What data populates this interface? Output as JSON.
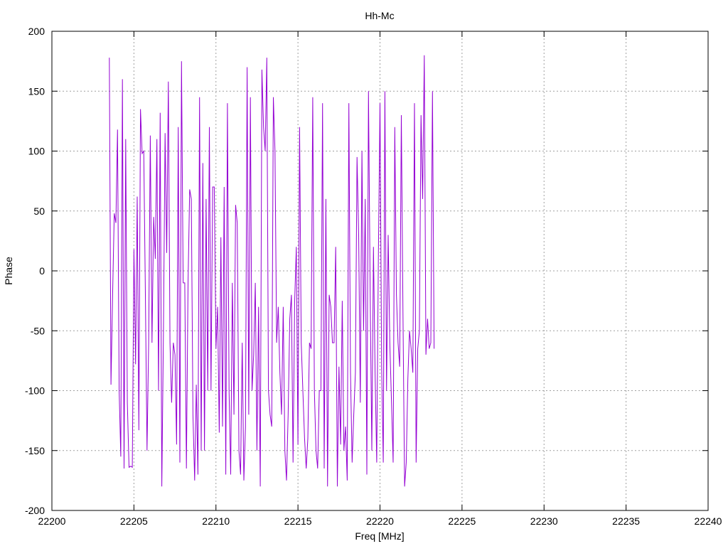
{
  "chart_data": {
    "type": "line",
    "title": "Hh-Mc",
    "xlabel": "Freq [MHz]",
    "ylabel": "Phase",
    "xlim": [
      22200,
      22240
    ],
    "ylim": [
      -200,
      200
    ],
    "x_ticks": [
      "22200",
      "22205",
      "22210",
      "22215",
      "22220",
      "22225",
      "22230",
      "22235",
      "22240"
    ],
    "y_ticks": [
      "200",
      "150",
      "100",
      "50",
      "0",
      "-50",
      "-100",
      "-150",
      "-200"
    ],
    "grid": true,
    "line_color": "#9400d3",
    "series": [
      {
        "x_start": 22203.5,
        "x_step": 0.1,
        "values": [
          178,
          -95,
          -20,
          48,
          40,
          118,
          -100,
          -155,
          160,
          -165,
          110,
          -110,
          -164,
          -163,
          -164,
          18,
          -78,
          62,
          -133,
          135,
          98,
          100,
          -20,
          -150,
          -60,
          113,
          -60,
          45,
          10,
          110,
          -100,
          132,
          -180,
          -50,
          115,
          15,
          158,
          -60,
          -110,
          -60,
          -70,
          -145,
          120,
          -160,
          175,
          -10,
          -10,
          -165,
          -10,
          68,
          60,
          -120,
          -175,
          -95,
          -170,
          145,
          -150,
          90,
          -150,
          60,
          -100,
          120,
          -100,
          70,
          70,
          -65,
          -30,
          -135,
          28,
          -130,
          70,
          -170,
          140,
          -100,
          -170,
          -10,
          -120,
          55,
          40,
          -150,
          -170,
          -60,
          -175,
          -130,
          170,
          -120,
          145,
          -100,
          -70,
          -10,
          -150,
          -30,
          -180,
          168,
          120,
          100,
          178,
          -100,
          -120,
          -130,
          145,
          100,
          -60,
          -30,
          -85,
          -120,
          -30,
          -150,
          -175,
          -120,
          -40,
          -20,
          -160,
          -25,
          20,
          -145,
          120,
          -60,
          -100,
          -140,
          -165,
          -140,
          -60,
          -65,
          145,
          -100,
          -150,
          -165,
          -100,
          -100,
          140,
          -165,
          60,
          -180,
          -20,
          -30,
          -60,
          -60,
          20,
          -180,
          -80,
          -145,
          -25,
          -150,
          -130,
          -175,
          140,
          -85,
          -160,
          -120,
          -85,
          95,
          30,
          -110,
          100,
          -50,
          60,
          -170,
          150,
          -20,
          -150,
          20,
          -85,
          -160,
          10,
          140,
          -80,
          -160,
          150,
          -100,
          30,
          -60,
          -110,
          -160,
          120,
          -20,
          -60,
          -80,
          130,
          -35,
          -180,
          -160,
          -90,
          -50,
          -65,
          -85,
          140,
          -160,
          -65,
          -50,
          130,
          60,
          180,
          -70,
          -40,
          -65,
          -60,
          150,
          -65
        ]
      }
    ]
  }
}
